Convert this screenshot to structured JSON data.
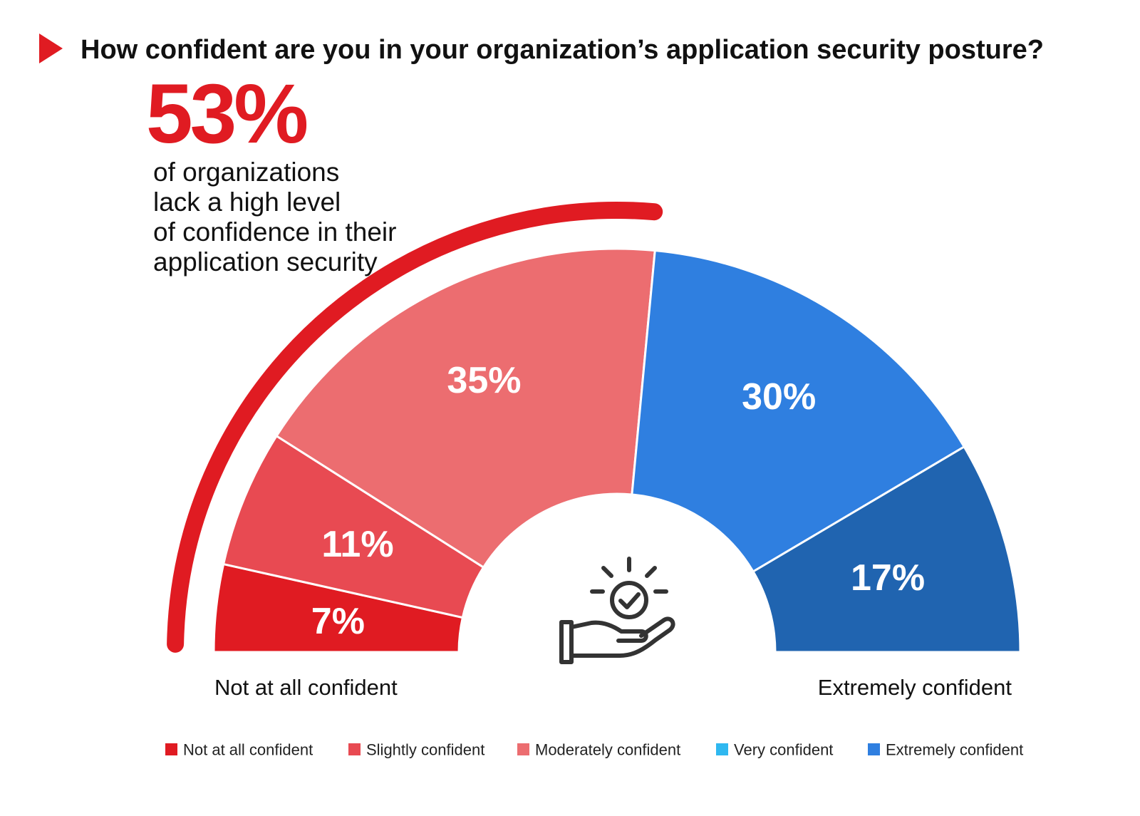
{
  "chart_data": {
    "type": "pie",
    "title": "How confident are you in your organization’s application security posture?",
    "highlight": {
      "value": "53%",
      "text": [
        "of organizations",
        "lack a high level",
        "of confidence in their",
        "application security"
      ],
      "color": "#e01b22"
    },
    "categories": [
      "Not at all confident",
      "Slightly confident",
      "Moderately confident",
      "Very confident",
      "Extremely confident"
    ],
    "values": [
      7,
      11,
      35,
      30,
      17
    ],
    "labels": [
      "7%",
      "11%",
      "35%",
      "30%",
      "17%"
    ],
    "colors": [
      "#e01b22",
      "#e84a52",
      "#ec6d70",
      "#2f7fe0",
      "#2064b0"
    ],
    "legend_colors": [
      "#e01b22",
      "#e84a52",
      "#ec6d70",
      "#2fb8f0",
      "#2f7fe0"
    ],
    "axis_ends": {
      "left": "Not at all confident",
      "right": "Extremely confident"
    },
    "legend_placement": "bottom",
    "center_icon": "hand-lightbulb-check-icon"
  }
}
